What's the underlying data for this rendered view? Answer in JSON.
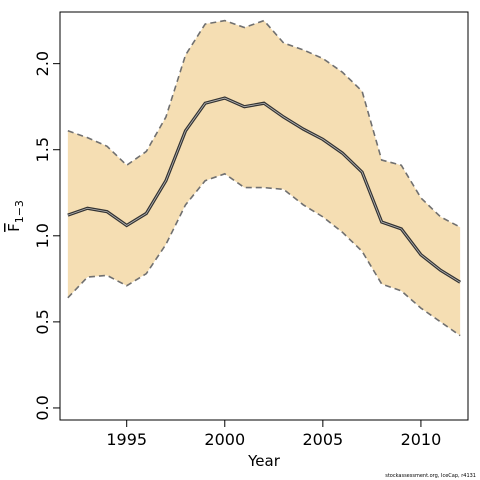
{
  "chart_data": {
    "type": "area",
    "title": "",
    "xlabel": "Year",
    "ylabel_main": "F",
    "ylabel_sub": "1−3",
    "xlim": [
      1991.6,
      2012.4
    ],
    "ylim": [
      -0.07,
      2.3
    ],
    "x_ticks": [
      1995,
      2000,
      2005,
      2010
    ],
    "y_ticks": [
      "0.0",
      "0.5",
      "1.0",
      "1.5",
      "2.0"
    ],
    "grid": false,
    "legend": "none",
    "colors": {
      "band": "#f5deb3",
      "band_edge": "#707070",
      "line": "#333333"
    },
    "x": [
      1992,
      1993,
      1994,
      1995,
      1996,
      1997,
      1998,
      1999,
      2000,
      2001,
      2002,
      2003,
      2004,
      2005,
      2006,
      2007,
      2008,
      2009,
      2010,
      2011,
      2012
    ],
    "series": [
      {
        "values": [
          1.12,
          1.16,
          1.14,
          1.06,
          1.13,
          1.32,
          1.61,
          1.77,
          1.8,
          1.75,
          1.77,
          1.69,
          1.62,
          1.56,
          1.48,
          1.37,
          1.08,
          1.04,
          0.89,
          0.8,
          0.73
        ]
      },
      {
        "values": [
          1.61,
          1.57,
          1.52,
          1.41,
          1.49,
          1.69,
          2.05,
          2.23,
          2.25,
          2.21,
          2.25,
          2.12,
          2.08,
          2.03,
          1.95,
          1.84,
          1.44,
          1.41,
          1.22,
          1.11,
          1.05
        ]
      },
      {
        "values": [
          0.64,
          0.76,
          0.77,
          0.71,
          0.78,
          0.95,
          1.18,
          1.32,
          1.36,
          1.28,
          1.28,
          1.27,
          1.18,
          1.11,
          1.02,
          0.91,
          0.72,
          0.68,
          0.58,
          0.5,
          0.42
        ]
      }
    ]
  },
  "footer": {
    "credit": "stockassessment.org, IceCap, r4131"
  }
}
